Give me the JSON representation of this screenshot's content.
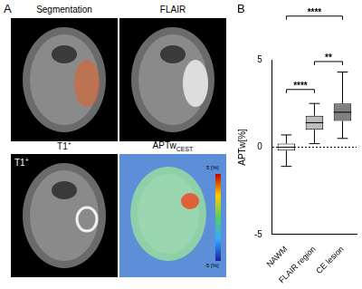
{
  "panel_a": {
    "label": "A",
    "images": [
      {
        "title": "Segmentation"
      },
      {
        "title": "FLAIR"
      },
      {
        "title": "T1",
        "title_sup": "+",
        "overlay": "T1",
        "overlay_sup": "+"
      },
      {
        "title": "APTw",
        "title_sub": "CEST",
        "colorbar": {
          "max_label": "5 [%]",
          "min_label": "-5 [%]"
        }
      }
    ]
  },
  "chart_data": {
    "panel_label": "B",
    "type": "boxplot",
    "y_label": "APTw[%]",
    "categories": [
      "NAWM",
      "FLAIR region",
      "CE lesion"
    ],
    "min": [
      -1.1,
      0.2,
      0.5
    ],
    "q1": [
      -0.2,
      1.0,
      1.5
    ],
    "median": [
      0.0,
      1.4,
      2.0
    ],
    "q3": [
      0.2,
      1.8,
      2.5
    ],
    "max": [
      0.7,
      2.5,
      4.3
    ],
    "colors": [
      "#ffffff",
      "#bdbdbd",
      "#808080"
    ],
    "ylim": [
      -5,
      5
    ],
    "yticks": [
      -5,
      0,
      5
    ],
    "reference_line": 0,
    "grid": false,
    "significance": [
      {
        "from": "NAWM",
        "to": "FLAIR region",
        "y": 3.3,
        "label": "****"
      },
      {
        "from": "FLAIR region",
        "to": "CE lesion",
        "y": 4.9,
        "label": "**"
      },
      {
        "from": "NAWM",
        "to": "CE lesion",
        "y": 7.5,
        "label": "****"
      }
    ]
  }
}
